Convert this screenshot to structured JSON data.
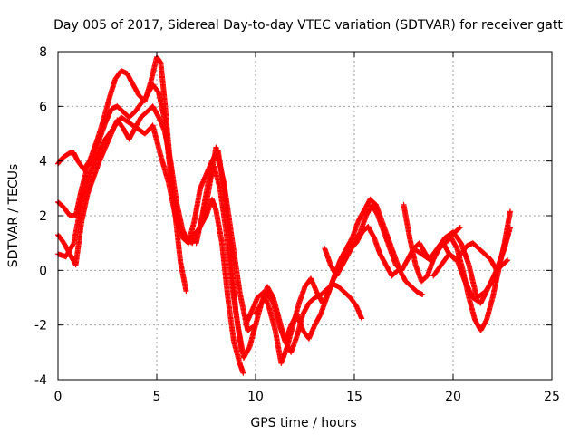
{
  "chart_data": {
    "type": "scatter",
    "title": "Day 005 of 2017, Sidereal Day-to-day VTEC variation (SDTVAR) for receiver gatt",
    "xlabel": "GPS time / hours",
    "ylabel": "SDTVAR / TECUs",
    "xlim": [
      0,
      25
    ],
    "ylim": [
      -4,
      8
    ],
    "xticks": [
      0,
      5,
      10,
      15,
      20,
      25
    ],
    "yticks": [
      -4,
      -2,
      0,
      2,
      4,
      6,
      8
    ],
    "grid": true,
    "legend": "none",
    "marker": "+",
    "color": "#ff0000",
    "series": [
      {
        "x": [
          0.0,
          0.2,
          0.4,
          0.6,
          0.8,
          1.0,
          1.3,
          1.6,
          2.0,
          2.3,
          2.6,
          2.9,
          3.2,
          3.5,
          3.8,
          4.1,
          4.4,
          4.7,
          5.0,
          5.2,
          5.4,
          5.6,
          5.8,
          6.0,
          6.2,
          6.5
        ],
        "y": [
          3.9,
          4.1,
          4.2,
          4.3,
          4.3,
          4.0,
          3.7,
          4.0,
          4.8,
          5.5,
          6.3,
          7.0,
          7.3,
          7.2,
          6.8,
          6.4,
          6.2,
          6.9,
          7.8,
          7.6,
          6.2,
          4.6,
          3.0,
          1.6,
          0.3,
          -0.8
        ]
      },
      {
        "x": [
          0.0,
          0.3,
          0.6,
          0.9,
          1.2,
          1.5,
          1.8,
          2.1,
          2.4,
          2.7,
          3.0,
          3.3,
          3.6,
          3.9,
          4.2,
          4.5,
          4.8,
          5.1,
          5.4,
          5.7,
          6.0,
          6.3,
          6.6,
          6.9,
          7.2,
          7.5,
          7.8,
          8.0,
          8.3,
          8.6,
          8.9,
          9.2,
          9.4
        ],
        "y": [
          2.5,
          2.3,
          2.0,
          2.0,
          3.0,
          3.8,
          4.2,
          4.8,
          5.4,
          5.9,
          6.0,
          5.8,
          5.6,
          5.8,
          6.1,
          6.4,
          6.8,
          6.5,
          5.5,
          3.5,
          2.0,
          1.2,
          1.0,
          1.3,
          1.6,
          2.0,
          2.6,
          2.2,
          1.0,
          -1.0,
          -2.6,
          -3.4,
          -3.8
        ]
      },
      {
        "x": [
          0.0,
          0.3,
          0.6,
          0.9,
          1.2,
          1.5,
          1.8,
          2.1,
          2.4,
          2.7,
          3.0,
          3.3,
          3.6,
          3.9,
          4.2,
          4.5,
          4.8,
          5.1,
          5.4,
          5.7,
          6.0,
          6.3,
          6.6,
          6.9,
          7.2,
          7.5,
          7.8,
          8.1,
          8.4,
          8.7,
          9.0,
          9.3
        ],
        "y": [
          1.3,
          1.0,
          0.6,
          0.2,
          1.8,
          2.8,
          3.4,
          4.0,
          4.5,
          5.0,
          5.5,
          5.2,
          4.8,
          5.2,
          5.6,
          5.8,
          6.0,
          5.6,
          5.1,
          4.0,
          2.5,
          1.5,
          1.0,
          1.8,
          3.0,
          3.5,
          4.0,
          4.4,
          3.0,
          1.0,
          -1.5,
          -3.0
        ]
      },
      {
        "x": [
          0.0,
          0.4,
          0.8,
          1.2,
          1.6,
          2.0,
          2.4,
          2.8,
          3.2,
          3.6,
          4.0,
          4.4,
          4.8,
          5.2,
          5.6,
          6.0,
          6.4,
          6.8,
          7.2,
          7.6,
          8.0,
          8.4,
          8.8,
          9.2,
          9.6,
          10.0
        ],
        "y": [
          0.6,
          0.5,
          1.0,
          2.5,
          3.5,
          4.2,
          4.8,
          5.2,
          5.6,
          5.4,
          5.2,
          5.0,
          5.3,
          4.2,
          3.2,
          1.8,
          1.2,
          1.0,
          1.6,
          2.8,
          4.5,
          3.2,
          1.2,
          -0.8,
          -2.2,
          -2.0
        ]
      },
      {
        "x": [
          7.0,
          7.3,
          7.6,
          7.9,
          8.2,
          8.5,
          8.8,
          9.1,
          9.4,
          9.7,
          10.0,
          10.3,
          10.6,
          10.9,
          11.2,
          11.5,
          11.8,
          12.1,
          12.4,
          12.7,
          13.0,
          13.3,
          13.6,
          13.9,
          14.2,
          14.5,
          14.8,
          15.1,
          15.4,
          15.7,
          16.0,
          16.3,
          16.6,
          16.9,
          17.2
        ],
        "y": [
          1.0,
          2.0,
          3.2,
          3.8,
          3.0,
          1.5,
          -0.5,
          -2.0,
          -3.2,
          -2.8,
          -2.0,
          -1.2,
          -0.6,
          -1.0,
          -1.8,
          -2.6,
          -2.0,
          -1.6,
          -2.2,
          -2.5,
          -2.0,
          -1.6,
          -1.0,
          -0.4,
          0.2,
          0.5,
          0.8,
          1.0,
          1.4,
          1.6,
          1.2,
          0.6,
          0.2,
          -0.2,
          0.0
        ]
      },
      {
        "x": [
          9.5,
          9.8,
          10.1,
          10.4,
          10.7,
          11.0,
          11.3,
          11.6,
          11.9,
          12.2,
          12.5,
          12.8,
          13.1,
          13.4,
          13.7,
          14.0,
          14.3,
          14.6,
          14.9,
          15.2,
          15.5,
          15.8,
          16.1,
          16.4,
          16.7,
          17.0,
          17.3,
          17.6,
          17.9,
          18.2,
          18.5
        ],
        "y": [
          -2.0,
          -1.5,
          -1.0,
          -0.8,
          -1.4,
          -2.2,
          -3.4,
          -2.8,
          -2.0,
          -1.2,
          -0.6,
          -0.3,
          -0.8,
          -1.2,
          -0.8,
          -0.2,
          0.4,
          0.8,
          1.2,
          1.8,
          2.2,
          2.6,
          2.4,
          1.8,
          1.2,
          0.6,
          0.0,
          -0.4,
          -0.6,
          -0.8,
          -0.9
        ]
      },
      {
        "x": [
          10.0,
          10.3,
          10.6,
          10.9,
          11.2,
          11.5,
          11.8,
          12.1,
          12.4,
          12.7,
          13.0,
          13.3,
          13.6,
          13.9,
          14.2,
          14.5,
          14.8,
          15.1,
          15.4
        ],
        "y": [
          -1.6,
          -1.2,
          -0.8,
          -1.2,
          -2.0,
          -2.6,
          -3.0,
          -2.4,
          -1.6,
          -1.2,
          -1.0,
          -0.9,
          -0.7,
          -0.5,
          -0.6,
          -0.8,
          -1.0,
          -1.3,
          -1.8
        ]
      },
      {
        "x": [
          13.5,
          13.8,
          14.1,
          14.4,
          14.7,
          15.0,
          15.3,
          15.6,
          15.9,
          16.2,
          16.5,
          16.8,
          17.1,
          17.4,
          17.7,
          18.0,
          18.3,
          18.6,
          18.9,
          19.2,
          19.5,
          19.8,
          20.1,
          20.4
        ],
        "y": [
          0.8,
          0.2,
          -0.2,
          0.2,
          0.6,
          1.0,
          1.4,
          2.0,
          2.4,
          2.0,
          1.4,
          0.8,
          0.2,
          0.0,
          0.4,
          0.8,
          1.0,
          0.6,
          0.4,
          0.8,
          1.0,
          1.2,
          1.4,
          1.6
        ]
      },
      {
        "x": [
          17.5,
          17.8,
          18.1,
          18.4,
          18.7,
          19.0,
          19.3,
          19.6,
          19.9,
          20.2,
          20.5,
          20.8,
          21.1,
          21.4,
          21.7,
          22.0,
          22.3,
          22.6,
          22.9
        ],
        "y": [
          2.4,
          1.2,
          0.2,
          -0.4,
          -0.2,
          0.4,
          0.8,
          1.0,
          1.2,
          0.8,
          0.0,
          -1.0,
          -1.8,
          -2.2,
          -1.8,
          -1.0,
          0.0,
          1.0,
          2.2
        ]
      },
      {
        "x": [
          18.0,
          18.4,
          18.8,
          19.2,
          19.6,
          20.0,
          20.4,
          20.8,
          21.2,
          21.6,
          22.0,
          22.4,
          22.8
        ],
        "y": [
          0.8,
          0.6,
          0.4,
          0.8,
          1.2,
          1.4,
          1.0,
          0.2,
          -1.0,
          -0.8,
          -0.4,
          0.4,
          1.4
        ]
      },
      {
        "x": [
          19.5,
          19.8,
          20.1,
          20.4,
          20.7,
          21.0,
          21.3,
          21.6,
          21.9,
          22.2,
          22.5,
          22.8
        ],
        "y": [
          1.0,
          0.6,
          0.4,
          0.6,
          0.9,
          1.0,
          0.8,
          0.6,
          0.4,
          0.0,
          0.2,
          0.4
        ]
      },
      {
        "x": [
          19.0,
          19.4,
          19.8,
          20.2,
          20.6,
          21.0,
          21.4,
          21.8,
          22.2,
          22.6,
          22.9
        ],
        "y": [
          -0.2,
          0.2,
          0.6,
          0.4,
          -0.4,
          -1.0,
          -1.2,
          -0.6,
          0.0,
          0.8,
          1.6
        ]
      }
    ]
  }
}
